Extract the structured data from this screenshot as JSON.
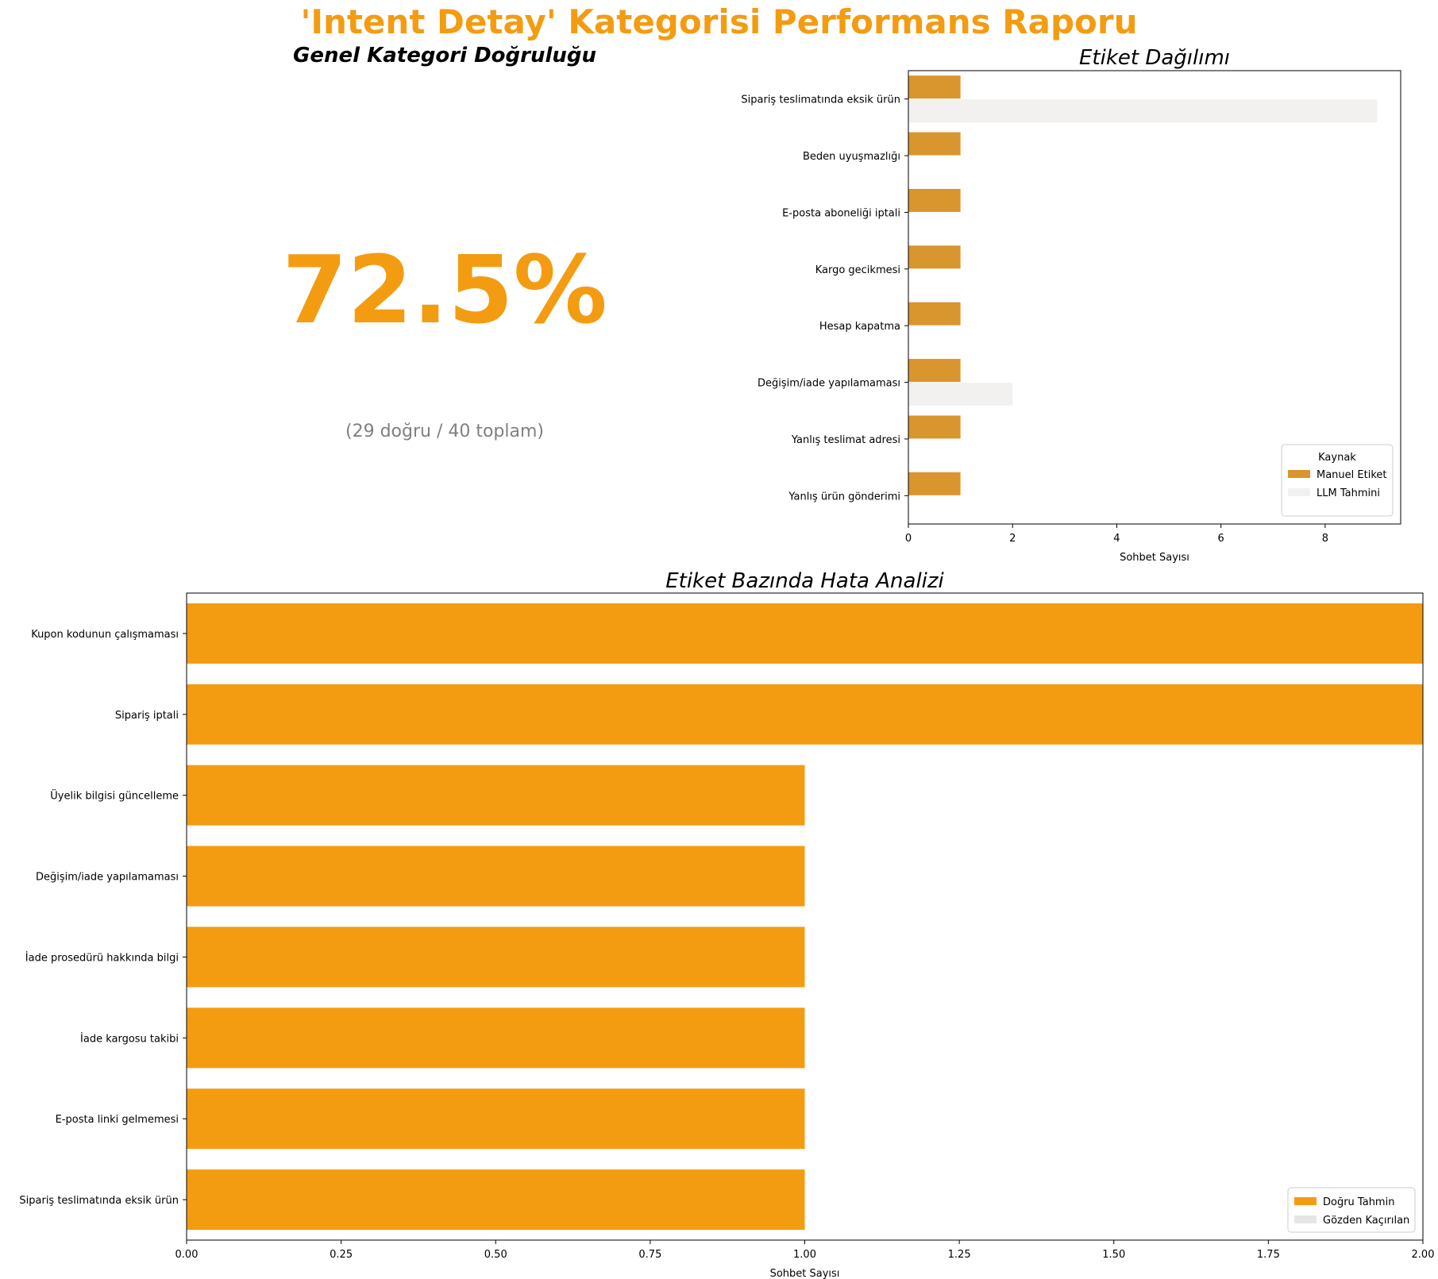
{
  "report": {
    "title": "'Intent Detay' Kategorisi Performans Raporu",
    "title_color": "#f39c12"
  },
  "accuracy_panel": {
    "title": "Genel Kategori Doğruluğu",
    "value": "72.5%",
    "value_color": "#f39c12",
    "subtitle": "(29 doğru / 40 toplam)"
  },
  "chart_data": [
    {
      "type": "bar",
      "orientation": "horizontal",
      "title": "Etiket Dağılımı",
      "xlabel": "Sohbet Sayısı",
      "ylabel": "",
      "xlim": [
        0,
        9.45
      ],
      "xticks": [
        0,
        2,
        4,
        6,
        8
      ],
      "categories": [
        "Sipariş teslimatında eksik ürün",
        "Beden uyuşmazlığı",
        "E-posta aboneliği iptali",
        "Kargo gecikmesi",
        "Hesap kapatma",
        "Değişim/iade yapılamaması",
        "Yanlış teslimat adresi",
        "Yanlış ürün gönderimi"
      ],
      "series": [
        {
          "name": "Manuel Etiket",
          "color": "#d9952e",
          "values": [
            1,
            1,
            1,
            1,
            1,
            1,
            1,
            1
          ]
        },
        {
          "name": "LLM Tahmini",
          "color": "#f2f1ef",
          "values": [
            9,
            0,
            0,
            0,
            0,
            2,
            0,
            0
          ]
        }
      ],
      "legend": {
        "title": "Kaynak",
        "position": "lower-right"
      },
      "grid": false
    },
    {
      "type": "bar",
      "orientation": "horizontal",
      "title": "Etiket Bazında Hata Analizi",
      "xlabel": "Sohbet Sayısı",
      "ylabel": "",
      "xlim": [
        0,
        2
      ],
      "xticks": [
        0.0,
        0.25,
        0.5,
        0.75,
        1.0,
        1.25,
        1.5,
        1.75,
        2.0
      ],
      "categories": [
        "Kupon kodunun çalışmaması",
        "Sipariş iptali",
        "Üyelik bilgisi güncelleme",
        "Değişim/iade yapılamaması",
        "İade prosedürü hakkında bilgi",
        "İade kargosu takibi",
        "E-posta linki gelmemesi",
        "Sipariş teslimatında eksik ürün"
      ],
      "series": [
        {
          "name": "Doğru Tahmin",
          "color": "#f39c12",
          "values": [
            2,
            2,
            1,
            1,
            1,
            1,
            1,
            1
          ]
        },
        {
          "name": "Gözden Kaçırılan",
          "color": "#e6e6e6",
          "values": [
            0,
            0,
            0,
            0,
            0,
            0,
            0,
            0
          ]
        }
      ],
      "legend": {
        "position": "lower-right"
      },
      "grid": false
    }
  ]
}
